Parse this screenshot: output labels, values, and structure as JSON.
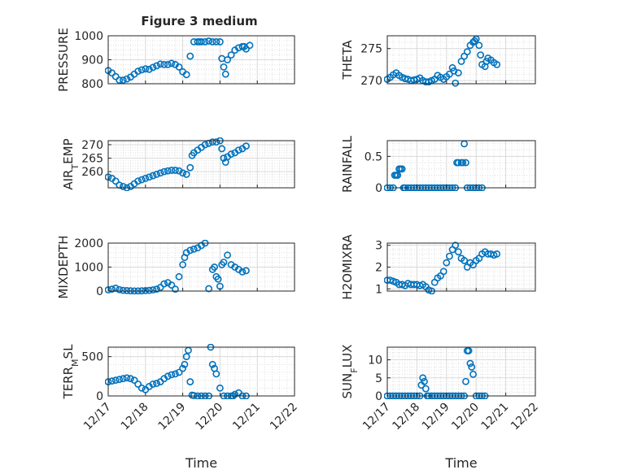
{
  "figure": {
    "title": "Figure 3 medium"
  },
  "colors": {
    "marker": "#0072BD",
    "axis": "#262626",
    "grid": "#d9d9d9",
    "background": "#ffffff"
  },
  "chart_data": [
    {
      "id": "pressure",
      "type": "scatter",
      "title": "Figure 3 medium",
      "ylabel": "PRESSURE",
      "xlabel": "",
      "xlim": [
        "12/17",
        "12/22"
      ],
      "xticks": [
        "12/17",
        "12/18",
        "12/19",
        "12/20",
        "12/21",
        "12/22"
      ],
      "ylim": [
        800,
        1000
      ],
      "yticks": [
        800,
        900,
        1000
      ],
      "grid": true,
      "minor_grid": true,
      "series": [
        {
          "x": [
            17.0,
            17.1,
            17.2,
            17.3,
            17.4,
            17.5,
            17.6,
            17.7,
            17.8,
            17.9,
            18.0,
            18.1,
            18.2,
            18.3,
            18.4,
            18.5,
            18.6,
            18.7,
            18.8,
            18.9,
            19.0,
            19.1,
            19.2,
            19.3,
            19.4,
            19.45,
            19.5,
            19.6,
            19.7,
            19.8,
            19.9,
            20.0,
            20.05,
            20.1,
            20.15,
            20.2,
            20.3,
            20.4,
            20.5,
            20.6,
            20.65,
            20.7,
            20.8
          ],
          "values": [
            855,
            845,
            830,
            815,
            815,
            820,
            828,
            840,
            852,
            858,
            862,
            860,
            868,
            875,
            882,
            880,
            880,
            885,
            880,
            870,
            850,
            838,
            915,
            975,
            975,
            975,
            975,
            975,
            978,
            975,
            975,
            975,
            905,
            870,
            840,
            900,
            920,
            940,
            950,
            955,
            955,
            945,
            960
          ]
        }
      ]
    },
    {
      "id": "theta",
      "type": "scatter",
      "ylabel": "THETA",
      "xlabel": "",
      "xlim": [
        "12/17",
        "12/22"
      ],
      "xticks": [
        "12/17",
        "12/18",
        "12/19",
        "12/20",
        "12/21",
        "12/22"
      ],
      "ylim": [
        269.5,
        277
      ],
      "yticks": [
        270,
        275
      ],
      "grid": true,
      "minor_grid": true,
      "series": [
        {
          "x": [
            17.0,
            17.1,
            17.2,
            17.3,
            17.4,
            17.5,
            17.6,
            17.7,
            17.8,
            17.9,
            18.0,
            18.1,
            18.2,
            18.3,
            18.4,
            18.5,
            18.6,
            18.7,
            18.8,
            18.9,
            19.0,
            19.1,
            19.2,
            19.25,
            19.3,
            19.4,
            19.5,
            19.6,
            19.7,
            19.8,
            19.9,
            19.95,
            20.0,
            20.1,
            20.15,
            20.2,
            20.3,
            20.35,
            20.4,
            20.5,
            20.6,
            20.7
          ],
          "values": [
            270.2,
            270.5,
            270.9,
            271.2,
            270.8,
            270.5,
            270.3,
            270.2,
            270.0,
            270.1,
            270.2,
            270.4,
            270.0,
            269.8,
            269.8,
            270.0,
            270.2,
            270.8,
            270.5,
            270.2,
            270.6,
            271.0,
            272.0,
            271.5,
            269.6,
            271.2,
            273.0,
            273.8,
            274.5,
            275.5,
            276.0,
            276.2,
            276.5,
            275.5,
            274.0,
            272.5,
            272.2,
            273.0,
            273.5,
            273.2,
            272.8,
            272.5
          ]
        }
      ]
    },
    {
      "id": "air_temp",
      "type": "scatter",
      "ylabel": "AIR_TEMP",
      "xlabel": "",
      "xlim": [
        "12/17",
        "12/22"
      ],
      "xticks": [
        "12/17",
        "12/18",
        "12/19",
        "12/20",
        "12/21",
        "12/22"
      ],
      "ylim": [
        254,
        271.5
      ],
      "yticks": [
        260,
        265,
        270
      ],
      "grid": true,
      "minor_grid": true,
      "series": [
        {
          "x": [
            17.0,
            17.1,
            17.2,
            17.3,
            17.4,
            17.5,
            17.6,
            17.7,
            17.8,
            17.9,
            18.0,
            18.1,
            18.2,
            18.3,
            18.4,
            18.5,
            18.6,
            18.7,
            18.8,
            18.9,
            19.0,
            19.1,
            19.2,
            19.25,
            19.3,
            19.4,
            19.5,
            19.6,
            19.7,
            19.8,
            19.9,
            20.0,
            20.05,
            20.1,
            20.15,
            20.2,
            20.3,
            20.4,
            20.5,
            20.6,
            20.7
          ],
          "values": [
            258,
            257.5,
            256.5,
            255,
            254.5,
            254,
            254.5,
            255.5,
            256.5,
            257,
            257.5,
            258,
            258.5,
            259,
            259.5,
            260,
            260.3,
            260.5,
            260.5,
            260.3,
            259.5,
            259,
            261.5,
            266,
            267,
            268,
            269,
            270,
            270.5,
            271,
            271,
            271.5,
            268.5,
            265,
            263.5,
            265.5,
            266.5,
            267,
            268,
            268.5,
            269.5
          ]
        }
      ]
    },
    {
      "id": "rainfall",
      "type": "scatter",
      "ylabel": "RAINFALL",
      "xlabel": "",
      "xlim": [
        "12/17",
        "12/22"
      ],
      "xticks": [
        "12/17",
        "12/18",
        "12/19",
        "12/20",
        "12/21",
        "12/22"
      ],
      "ylim": [
        0,
        0.75
      ],
      "yticks": [
        0,
        0.5
      ],
      "grid": true,
      "minor_grid": true,
      "series": [
        {
          "x": [
            17.0,
            17.1,
            17.2,
            17.25,
            17.3,
            17.35,
            17.4,
            17.45,
            17.5,
            17.55,
            17.6,
            17.7,
            17.8,
            17.9,
            18.0,
            18.1,
            18.2,
            18.3,
            18.4,
            18.5,
            18.6,
            18.7,
            18.8,
            18.9,
            19.0,
            19.1,
            19.2,
            19.3,
            19.35,
            19.4,
            19.5,
            19.55,
            19.6,
            19.65,
            19.7,
            19.8,
            19.9,
            20.0,
            20.1,
            20.2
          ],
          "values": [
            0,
            0,
            0,
            0.2,
            0.2,
            0.2,
            0.3,
            0.3,
            0.3,
            0,
            0,
            0,
            0,
            0,
            0,
            0,
            0,
            0,
            0,
            0,
            0,
            0,
            0,
            0,
            0,
            0,
            0,
            0,
            0.4,
            0.4,
            0.4,
            0.4,
            0.7,
            0.4,
            0,
            0,
            0,
            0,
            0,
            0
          ]
        }
      ]
    },
    {
      "id": "mixdepth",
      "type": "scatter",
      "ylabel": "MIXDEPTH",
      "xlabel": "",
      "xlim": [
        "12/17",
        "12/22"
      ],
      "xticks": [
        "12/17",
        "12/18",
        "12/19",
        "12/20",
        "12/21",
        "12/22"
      ],
      "ylim": [
        0,
        2000
      ],
      "yticks": [
        0,
        1000,
        2000
      ],
      "grid": true,
      "minor_grid": true,
      "series": [
        {
          "x": [
            17.0,
            17.1,
            17.2,
            17.3,
            17.4,
            17.5,
            17.6,
            17.7,
            17.8,
            17.9,
            18.0,
            18.1,
            18.2,
            18.3,
            18.4,
            18.5,
            18.6,
            18.7,
            18.8,
            18.9,
            19.0,
            19.05,
            19.1,
            19.2,
            19.3,
            19.4,
            19.5,
            19.6,
            19.7,
            19.8,
            19.85,
            19.9,
            19.95,
            20.0,
            20.05,
            20.1,
            20.2,
            20.3,
            20.4,
            20.5,
            20.6,
            20.7
          ],
          "values": [
            50,
            80,
            120,
            60,
            30,
            20,
            10,
            5,
            5,
            10,
            20,
            30,
            50,
            80,
            150,
            300,
            350,
            250,
            80,
            600,
            1100,
            1400,
            1600,
            1700,
            1750,
            1800,
            1900,
            2000,
            100,
            900,
            1000,
            600,
            500,
            200,
            1100,
            1200,
            1500,
            1100,
            1000,
            900,
            800,
            850
          ]
        }
      ]
    },
    {
      "id": "h2omixra",
      "type": "scatter",
      "ylabel": "H2OMIXRA",
      "xlabel": "",
      "xlim": [
        "12/17",
        "12/22"
      ],
      "xticks": [
        "12/17",
        "12/18",
        "12/19",
        "12/20",
        "12/21",
        "12/22"
      ],
      "ylim": [
        0.9,
        3.1
      ],
      "yticks": [
        1,
        2,
        3
      ],
      "grid": true,
      "minor_grid": true,
      "series": [
        {
          "x": [
            17.0,
            17.1,
            17.2,
            17.3,
            17.4,
            17.5,
            17.6,
            17.7,
            17.8,
            17.9,
            18.0,
            18.1,
            18.2,
            18.3,
            18.4,
            18.5,
            18.6,
            18.7,
            18.8,
            18.9,
            19.0,
            19.1,
            19.2,
            19.3,
            19.4,
            19.5,
            19.6,
            19.7,
            19.8,
            19.9,
            20.0,
            20.1,
            20.2,
            20.3,
            20.4,
            20.5,
            20.6,
            20.7
          ],
          "values": [
            1.4,
            1.4,
            1.35,
            1.3,
            1.2,
            1.2,
            1.15,
            1.25,
            1.2,
            1.2,
            1.2,
            1.15,
            1.2,
            1.1,
            0.95,
            0.9,
            1.3,
            1.5,
            1.6,
            1.8,
            2.2,
            2.5,
            2.8,
            3.0,
            2.7,
            2.4,
            2.3,
            2.0,
            2.2,
            2.1,
            2.3,
            2.4,
            2.6,
            2.7,
            2.6,
            2.6,
            2.55,
            2.6
          ]
        }
      ]
    },
    {
      "id": "terr_msl",
      "type": "scatter",
      "ylabel": "TERR_MSL",
      "xlabel": "Time",
      "xlim": [
        "12/17",
        "12/22"
      ],
      "xticks": [
        "12/17",
        "12/18",
        "12/19",
        "12/20",
        "12/21",
        "12/22"
      ],
      "ylim": [
        0,
        620
      ],
      "yticks": [
        0,
        500
      ],
      "grid": true,
      "minor_grid": true,
      "series": [
        {
          "x": [
            17.0,
            17.1,
            17.2,
            17.3,
            17.4,
            17.5,
            17.6,
            17.7,
            17.8,
            17.9,
            18.0,
            18.1,
            18.2,
            18.3,
            18.4,
            18.5,
            18.6,
            18.7,
            18.8,
            18.9,
            19.0,
            19.05,
            19.1,
            19.15,
            19.2,
            19.25,
            19.3,
            19.4,
            19.5,
            19.6,
            19.7,
            19.75,
            19.8,
            19.85,
            19.9,
            20.0,
            20.1,
            20.2,
            20.3,
            20.35,
            20.4,
            20.5,
            20.6,
            20.7
          ],
          "values": [
            180,
            190,
            200,
            210,
            220,
            230,
            220,
            200,
            150,
            100,
            80,
            120,
            150,
            160,
            180,
            220,
            250,
            270,
            280,
            300,
            350,
            400,
            500,
            580,
            180,
            10,
            5,
            0,
            0,
            0,
            0,
            620,
            400,
            350,
            280,
            100,
            0,
            0,
            0,
            0,
            20,
            40,
            0,
            0
          ]
        }
      ]
    },
    {
      "id": "sun_flux",
      "type": "scatter",
      "ylabel": "SUN_FLUX",
      "xlabel": "Time",
      "xlim": [
        "12/17",
        "12/22"
      ],
      "xticks": [
        "12/17",
        "12/18",
        "12/19",
        "12/20",
        "12/21",
        "12/22"
      ],
      "ylim": [
        0,
        13.5
      ],
      "yticks": [
        0,
        5,
        10
      ],
      "grid": true,
      "minor_grid": true,
      "series": [
        {
          "x": [
            17.0,
            17.1,
            17.2,
            17.3,
            17.4,
            17.5,
            17.6,
            17.7,
            17.8,
            17.9,
            18.0,
            18.1,
            18.15,
            18.2,
            18.25,
            18.3,
            18.35,
            18.4,
            18.5,
            18.6,
            18.7,
            18.8,
            18.9,
            19.0,
            19.1,
            19.2,
            19.3,
            19.4,
            19.5,
            19.6,
            19.65,
            19.7,
            19.75,
            19.8,
            19.85,
            19.9,
            20.0,
            20.1,
            20.2,
            20.3
          ],
          "values": [
            0,
            0,
            0,
            0,
            0,
            0,
            0,
            0,
            0,
            0,
            0,
            0,
            3,
            5,
            4,
            2,
            0,
            0,
            0,
            0,
            0,
            0,
            0,
            0,
            0,
            0,
            0,
            0,
            0,
            0,
            4,
            12.5,
            12.5,
            9,
            8,
            6,
            0,
            0,
            0,
            0
          ]
        }
      ]
    }
  ]
}
